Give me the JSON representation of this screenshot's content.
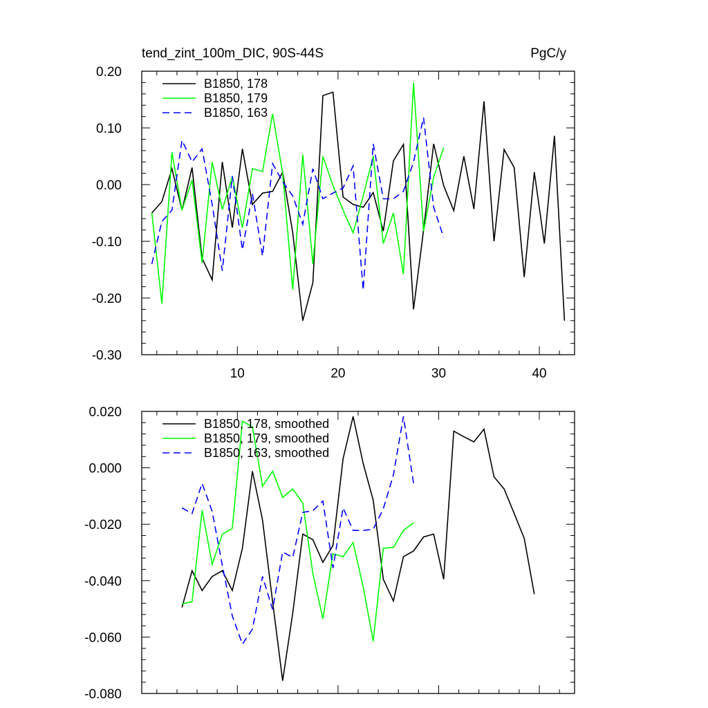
{
  "title": "tend_zint_100m_DIC, 90S-44S",
  "units": "PgC/y",
  "chart_data": [
    {
      "type": "line",
      "title": "tend_zint_100m_DIC, 90S-44S",
      "units": "PgC/y",
      "xlim": [
        0.5,
        43.5
      ],
      "ylim": [
        -0.3,
        0.2
      ],
      "xticks": [
        10,
        20,
        30,
        40
      ],
      "xtick_labels": [
        "10",
        "20",
        "30",
        "40"
      ],
      "yticks": [
        0.2,
        0.1,
        0.0,
        -0.1,
        -0.2,
        -0.3
      ],
      "ytick_labels": [
        "0.20",
        "0.10",
        "0.00",
        "-0.10",
        "-0.20",
        "-0.30"
      ],
      "legend_position": "top-left",
      "series": [
        {
          "name": "B1850, 178",
          "color": "#000000",
          "dash": "solid",
          "x": [
            1.5,
            2.5,
            3.5,
            4.5,
            5.5,
            6.5,
            7.5,
            8.5,
            9.5,
            10.5,
            11.5,
            12.5,
            13.5,
            14.5,
            15.5,
            16.5,
            17.5,
            18.5,
            19.5,
            20.5,
            21.5,
            22.5,
            23.5,
            24.5,
            25.5,
            26.5,
            27.5,
            28.5,
            29.5,
            30.5,
            31.5,
            32.5,
            33.5,
            34.5,
            35.5,
            36.5,
            37.5,
            38.5,
            39.5,
            40.5,
            41.5,
            42.5
          ],
          "values": [
            -0.05,
            -0.03,
            0.028,
            -0.045,
            0.03,
            -0.13,
            -0.168,
            0.04,
            -0.076,
            0.063,
            -0.035,
            -0.015,
            -0.012,
            0.022,
            -0.085,
            -0.24,
            -0.173,
            0.157,
            0.163,
            -0.022,
            -0.035,
            -0.04,
            -0.014,
            -0.082,
            0.042,
            0.071,
            -0.22,
            -0.08,
            0.072,
            -0.002,
            -0.046,
            0.05,
            -0.043,
            0.147,
            -0.1,
            0.062,
            0.03,
            -0.163,
            0.022,
            -0.104,
            0.086,
            -0.24
          ]
        },
        {
          "name": "B1850, 179",
          "color": "#00ff00",
          "dash": "solid",
          "x": [
            1.5,
            2.5,
            3.5,
            4.5,
            5.5,
            6.5,
            7.5,
            8.5,
            9.5,
            10.5,
            11.5,
            12.5,
            13.5,
            14.5,
            15.5,
            16.5,
            17.5,
            18.5,
            19.5,
            20.5,
            21.5,
            22.5,
            23.5,
            24.5,
            25.5,
            26.5,
            27.5,
            28.5,
            29.5,
            30.5
          ],
          "values": [
            -0.05,
            -0.21,
            0.057,
            -0.045,
            0.008,
            -0.138,
            0.04,
            -0.044,
            0.014,
            -0.076,
            0.028,
            0.023,
            0.125,
            0.02,
            -0.185,
            0.053,
            -0.14,
            0.05,
            -0.002,
            -0.045,
            -0.085,
            -0.02,
            0.05,
            -0.104,
            -0.05,
            -0.158,
            0.18,
            -0.082,
            0.013,
            0.065
          ]
        },
        {
          "name": "B1850, 163",
          "color": "#0000ff",
          "dash": "dashed",
          "x": [
            1.5,
            2.5,
            3.5,
            4.5,
            5.5,
            6.5,
            7.5,
            8.5,
            9.5,
            10.5,
            11.5,
            12.5,
            13.5,
            14.5,
            15.5,
            16.5,
            17.5,
            18.5,
            19.5,
            20.5,
            21.5,
            22.5,
            23.5,
            24.5,
            25.5,
            26.5,
            27.5,
            28.5,
            29.5,
            30.5
          ],
          "values": [
            -0.14,
            -0.065,
            -0.045,
            0.078,
            0.04,
            0.063,
            -0.035,
            -0.152,
            0.015,
            -0.115,
            -0.016,
            -0.126,
            0.037,
            0.005,
            -0.02,
            -0.07,
            0.028,
            -0.025,
            -0.015,
            -0.006,
            0.033,
            -0.186,
            0.072,
            -0.025,
            -0.025,
            -0.012,
            0.04,
            0.118,
            -0.04,
            -0.093
          ]
        }
      ]
    },
    {
      "type": "line",
      "xlim": [
        0.5,
        43.5
      ],
      "ylim": [
        -0.08,
        0.02
      ],
      "xticks": [
        10,
        20,
        30,
        40
      ],
      "xtick_labels": [],
      "yticks": [
        0.02,
        0.0,
        -0.02,
        -0.04,
        -0.06,
        -0.08
      ],
      "ytick_labels": [
        "0.020",
        "0.000",
        "-0.020",
        "-0.040",
        "-0.060",
        "-0.080"
      ],
      "legend_position": "top-left",
      "series": [
        {
          "name": "B1850, 178, smoothed",
          "color": "#000000",
          "dash": "solid",
          "x": [
            4.5,
            5.5,
            6.5,
            7.5,
            8.5,
            9.5,
            10.5,
            11.5,
            12.5,
            13.5,
            14.5,
            15.5,
            16.5,
            17.5,
            18.5,
            19.5,
            20.5,
            21.5,
            22.5,
            23.5,
            24.5,
            25.5,
            26.5,
            27.5,
            28.5,
            29.5,
            30.5,
            31.5,
            32.5,
            33.5,
            34.5,
            35.5,
            36.5,
            37.5,
            38.5,
            39.5
          ],
          "values": [
            -0.0495,
            -0.0365,
            -0.0435,
            -0.0385,
            -0.0365,
            -0.0435,
            -0.0285,
            -0.0012,
            -0.0185,
            -0.0475,
            -0.0755,
            -0.0515,
            -0.0235,
            -0.0255,
            -0.0335,
            -0.0275,
            0.0032,
            0.0182,
            0.0015,
            -0.0115,
            -0.0395,
            -0.0472,
            -0.0315,
            -0.0295,
            -0.0245,
            -0.0235,
            -0.0395,
            0.013,
            0.011,
            0.0092,
            0.0137,
            -0.0032,
            -0.0075,
            -0.0162,
            -0.025,
            -0.0448
          ]
        },
        {
          "name": "B1850, 179, smoothed",
          "color": "#00ff00",
          "dash": "solid",
          "x": [
            4.5,
            5.5,
            6.5,
            7.5,
            8.5,
            9.5,
            10.5,
            11.5,
            12.5,
            13.5,
            14.5,
            15.5,
            16.5,
            17.5,
            18.5,
            19.5,
            20.5,
            21.5,
            22.5,
            23.5,
            24.5,
            25.5,
            26.5,
            27.5
          ],
          "values": [
            -0.0482,
            -0.0475,
            -0.015,
            -0.0342,
            -0.0235,
            -0.0215,
            0.0165,
            0.0145,
            -0.0065,
            -0.0012,
            -0.0105,
            -0.0075,
            -0.0125,
            -0.0375,
            -0.0535,
            -0.0305,
            -0.0315,
            -0.0265,
            -0.0422,
            -0.0615,
            -0.0285,
            -0.0282,
            -0.0222,
            -0.0195
          ]
        },
        {
          "name": "B1850, 163, smoothed",
          "color": "#0000ff",
          "dash": "dashed",
          "x": [
            4.5,
            5.5,
            6.5,
            7.5,
            8.5,
            9.5,
            10.5,
            11.5,
            12.5,
            13.5,
            14.5,
            15.5,
            16.5,
            17.5,
            18.5,
            19.5,
            20.5,
            21.5,
            22.5,
            23.5,
            24.5,
            25.5,
            26.5,
            27.5
          ],
          "values": [
            -0.0142,
            -0.0162,
            -0.0055,
            -0.0155,
            -0.0345,
            -0.0525,
            -0.0625,
            -0.0572,
            -0.0385,
            -0.0502,
            -0.0298,
            -0.0318,
            -0.0158,
            -0.0152,
            -0.0118,
            -0.0355,
            -0.0142,
            -0.0222,
            -0.0222,
            -0.0218,
            -0.0145,
            -0.0025,
            0.0182,
            -0.0055
          ]
        }
      ]
    }
  ]
}
